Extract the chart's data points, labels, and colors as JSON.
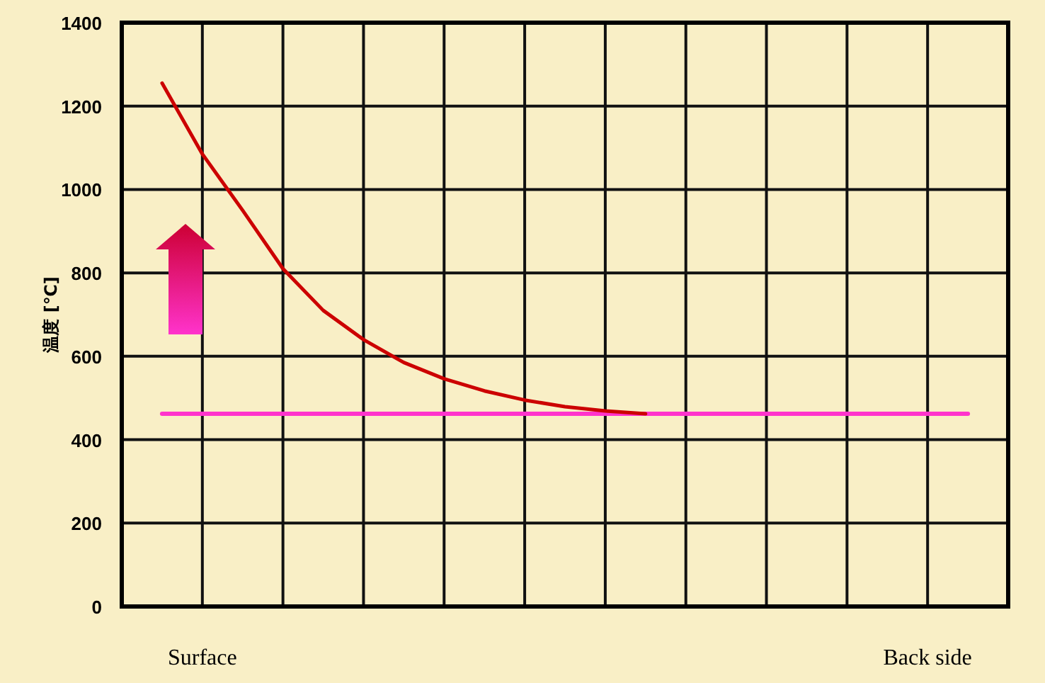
{
  "chart_data": {
    "type": "line",
    "ylabel": "温度 [℃]",
    "categories": [
      null,
      null,
      "Surface",
      null,
      null,
      null,
      null,
      null,
      null,
      null,
      null,
      null,
      null,
      null,
      null,
      null,
      null,
      null,
      null,
      null,
      "Back side",
      null,
      null
    ],
    "ylim": [
      0,
      1400
    ],
    "yticks": [
      0,
      200,
      400,
      600,
      800,
      1000,
      1200,
      1400
    ],
    "grid": true,
    "series": [
      {
        "color": "#cc0000",
        "values": [
          null,
          1255,
          1085,
          950,
          810,
          710,
          640,
          585,
          546,
          517,
          495,
          479,
          469,
          462,
          null,
          null,
          null,
          null,
          null,
          null,
          null,
          null,
          null
        ]
      },
      {
        "color": "#ff33cc",
        "values": [
          null,
          462,
          462,
          462,
          462,
          462,
          462,
          462,
          462,
          462,
          462,
          462,
          462,
          462,
          462,
          462,
          462,
          462,
          462,
          462,
          462,
          462,
          null
        ]
      }
    ]
  }
}
